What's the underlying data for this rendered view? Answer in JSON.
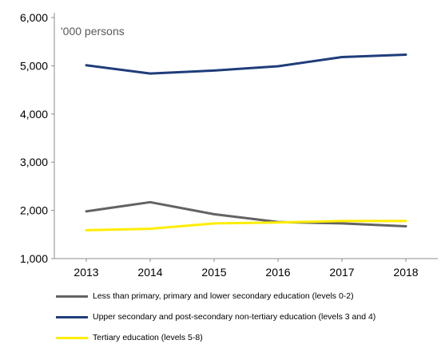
{
  "chart_data": {
    "type": "line",
    "unit_note": "'000 persons",
    "x": [
      "2013",
      "2014",
      "2015",
      "2016",
      "2017",
      "2018"
    ],
    "ylim": [
      1000,
      6000
    ],
    "yticks": [
      "1,000",
      "2,000",
      "3,000",
      "4,000",
      "5,000",
      "6,000"
    ],
    "ytick_values": [
      1000,
      2000,
      3000,
      4000,
      5000,
      6000
    ],
    "grid": false,
    "legend_position": "bottom",
    "series": [
      {
        "name": "Less than primary, primary and lower secondary education (levels 0-2)",
        "color": "#636363",
        "values": [
          1980,
          2170,
          1920,
          1760,
          1730,
          1670
        ]
      },
      {
        "name": "Upper secondary and post-secondary non-tertiary education (levels 3 and 4)",
        "color": "#1f3d7a",
        "values": [
          5010,
          4840,
          4900,
          4990,
          5180,
          5230
        ]
      },
      {
        "name": "Tertiary education (levels 5-8)",
        "color": "#ffed00",
        "values": [
          1590,
          1620,
          1730,
          1750,
          1780,
          1780
        ]
      }
    ]
  }
}
